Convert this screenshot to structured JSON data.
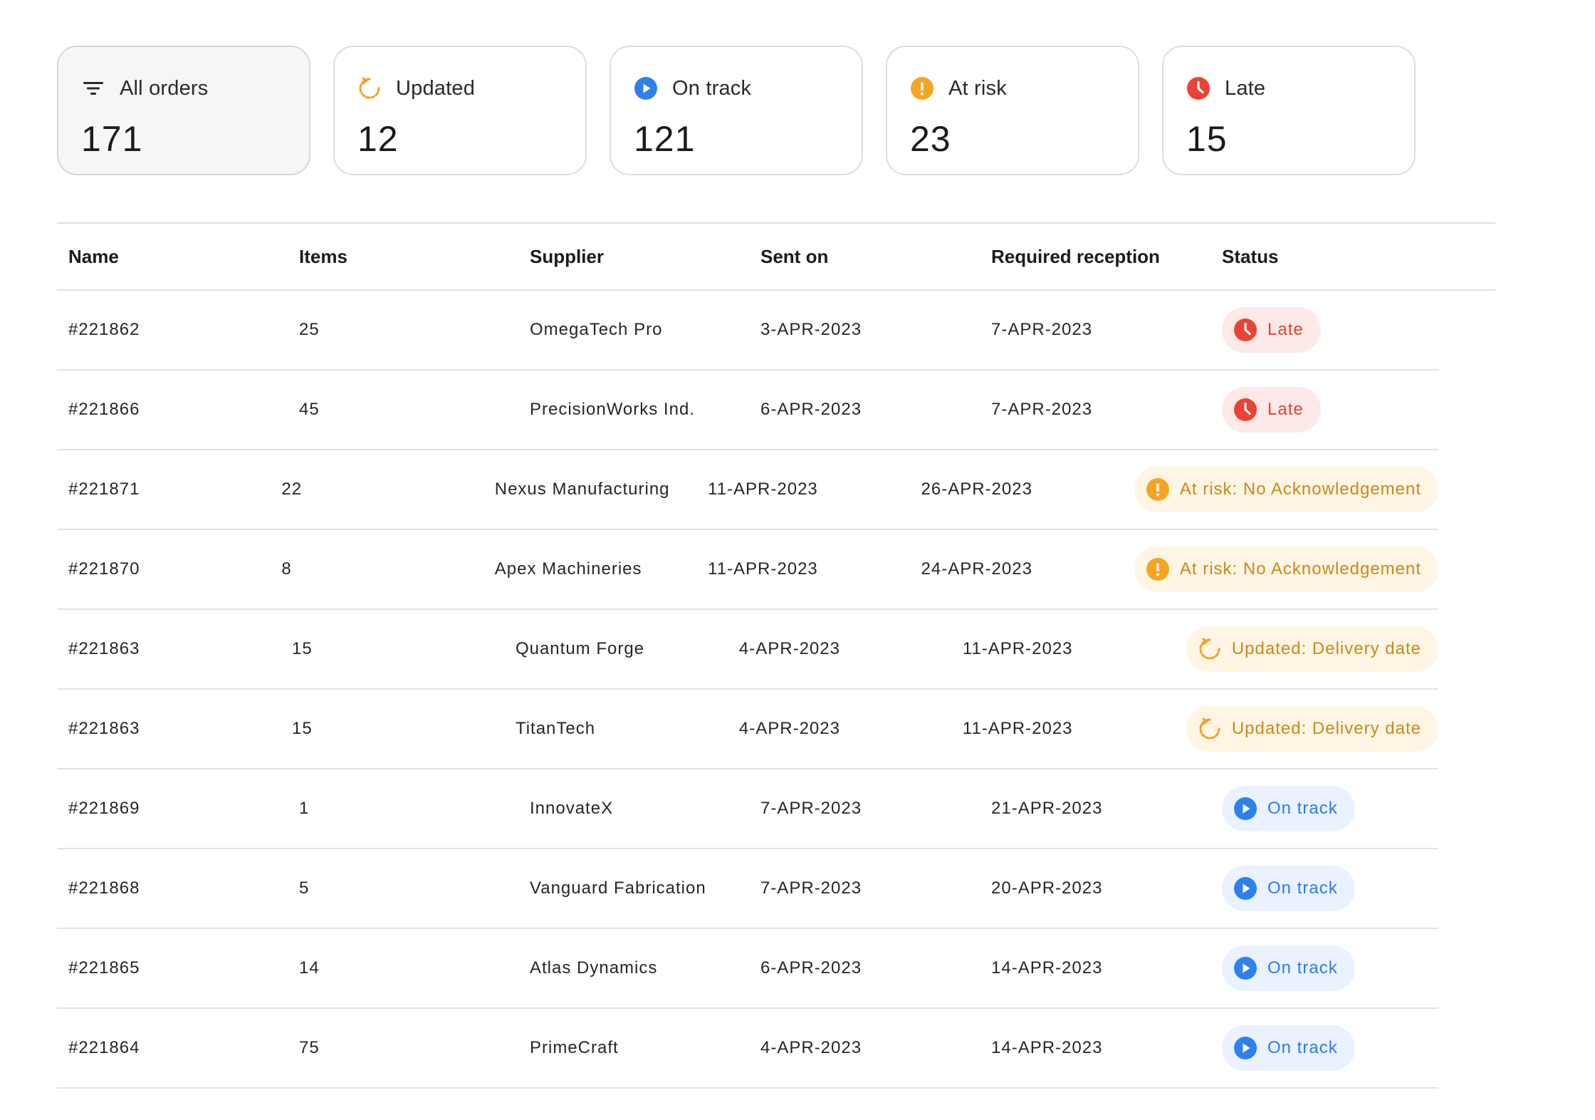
{
  "colors": {
    "late": "#ea4335",
    "risk": "#f5a524",
    "updated": "#f2a42a",
    "ontrack": "#2f80ed"
  },
  "summary": {
    "all": {
      "label": "All orders",
      "count": "171",
      "icon": "filter-icon"
    },
    "updated": {
      "label": "Updated",
      "count": "12",
      "icon": "refresh-icon"
    },
    "on_track": {
      "label": "On track",
      "count": "121",
      "icon": "play-circle-icon"
    },
    "at_risk": {
      "label": "At risk",
      "count": "23",
      "icon": "exclamation-circle-icon"
    },
    "late": {
      "label": "Late",
      "count": "15",
      "icon": "clock-icon"
    }
  },
  "table": {
    "headers": {
      "name": "Name",
      "items": "Items",
      "supplier": "Supplier",
      "sent_on": "Sent on",
      "required": "Required reception",
      "status": "Status"
    },
    "rows": [
      {
        "name": "#221862",
        "items": "25",
        "supplier": "OmegaTech Pro",
        "sent_on": "3-APR-2023",
        "required": "7-APR-2023",
        "status": "Late",
        "status_type": "late"
      },
      {
        "name": "#221866",
        "items": "45",
        "supplier": "PrecisionWorks Ind.",
        "sent_on": "6-APR-2023",
        "required": "7-APR-2023",
        "status": "Late",
        "status_type": "late"
      },
      {
        "name": "#221871",
        "items": "22",
        "supplier": "Nexus Manufacturing",
        "sent_on": "11-APR-2023",
        "required": "26-APR-2023",
        "status": "At risk: No Acknowledgement",
        "status_type": "risk"
      },
      {
        "name": "#221870",
        "items": "8",
        "supplier": "Apex Machineries",
        "sent_on": "11-APR-2023",
        "required": "24-APR-2023",
        "status": "At risk: No Acknowledgement",
        "status_type": "risk"
      },
      {
        "name": "#221863",
        "items": "15",
        "supplier": "Quantum Forge",
        "sent_on": "4-APR-2023",
        "required": "11-APR-2023",
        "status": "Updated: Delivery date",
        "status_type": "updated"
      },
      {
        "name": "#221863",
        "items": "15",
        "supplier": "TitanTech",
        "sent_on": "4-APR-2023",
        "required": "11-APR-2023",
        "status": "Updated: Delivery date",
        "status_type": "updated"
      },
      {
        "name": "#221869",
        "items": "1",
        "supplier": "InnovateX",
        "sent_on": "7-APR-2023",
        "required": "21-APR-2023",
        "status": "On track",
        "status_type": "ontrack"
      },
      {
        "name": "#221868",
        "items": "5",
        "supplier": "Vanguard Fabrication",
        "sent_on": "7-APR-2023",
        "required": "20-APR-2023",
        "status": "On track",
        "status_type": "ontrack"
      },
      {
        "name": "#221865",
        "items": "14",
        "supplier": "Atlas Dynamics",
        "sent_on": "6-APR-2023",
        "required": "14-APR-2023",
        "status": "On track",
        "status_type": "ontrack"
      },
      {
        "name": "#221864",
        "items": "75",
        "supplier": "PrimeCraft",
        "sent_on": "4-APR-2023",
        "required": "14-APR-2023",
        "status": "On track",
        "status_type": "ontrack"
      }
    ]
  }
}
